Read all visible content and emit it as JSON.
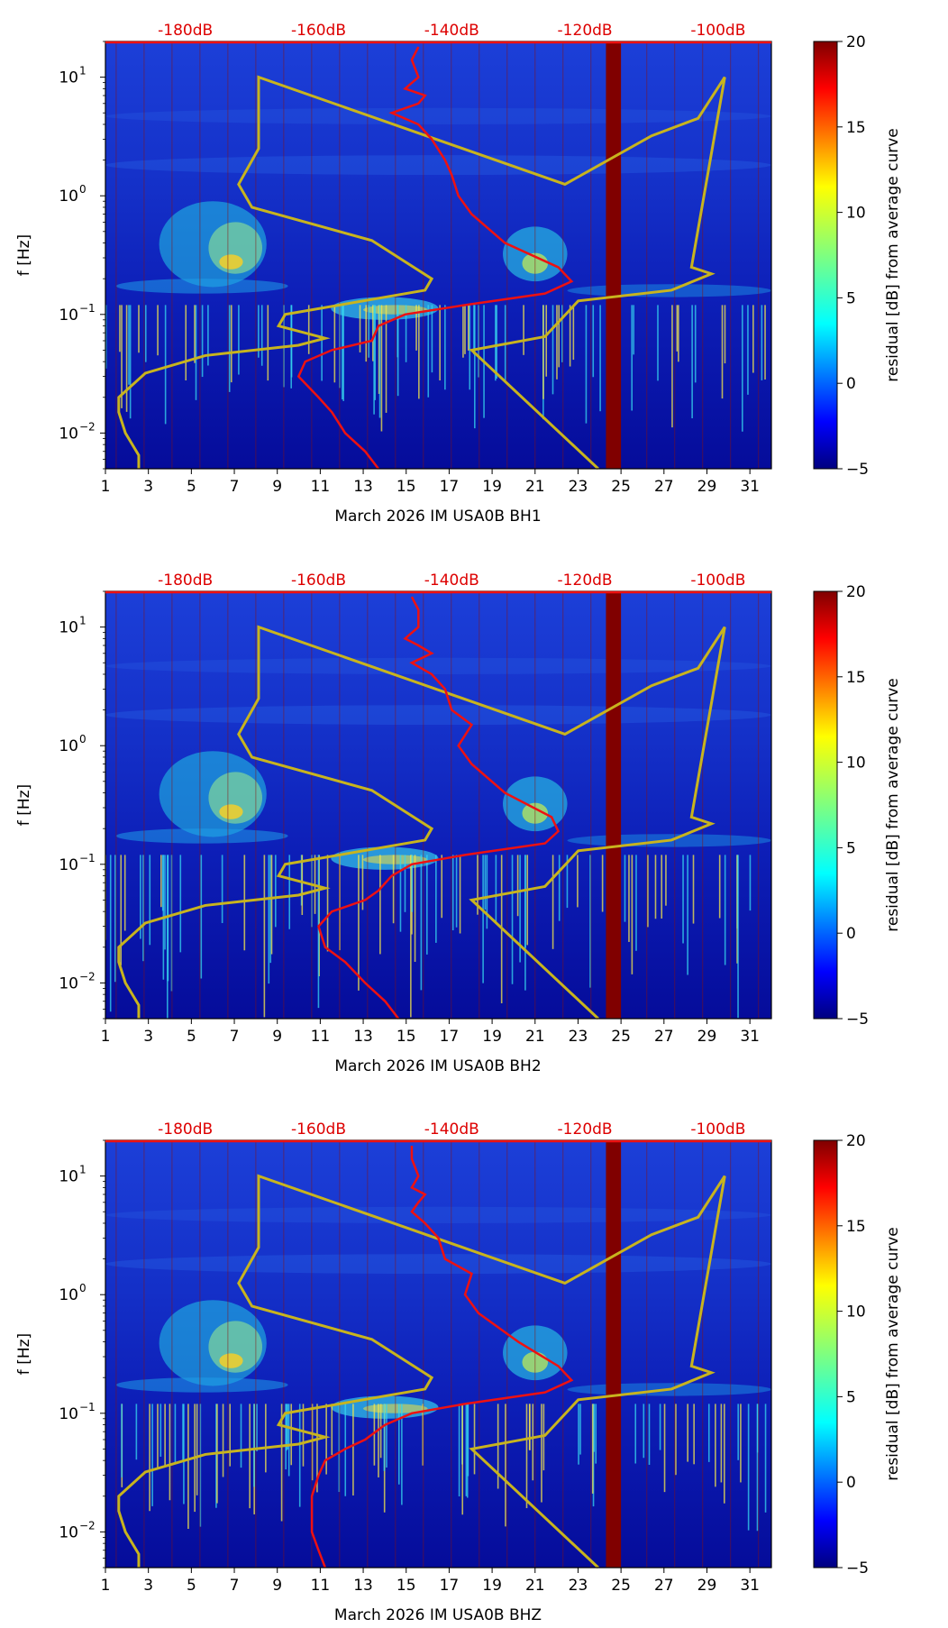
{
  "chart_data": {
    "type": "heatmap",
    "panels": [
      {
        "channel": "BH1",
        "xlabel": "March 2026 IM USA0B  BH1",
        "power_curve": [
          [
            -151,
            0.005
          ],
          [
            -153,
            0.007
          ],
          [
            -156,
            0.01
          ],
          [
            -158,
            0.015
          ],
          [
            -160,
            0.02
          ],
          [
            -163,
            0.03
          ],
          [
            -162,
            0.04
          ],
          [
            -158,
            0.05
          ],
          [
            -152,
            0.06
          ],
          [
            -151,
            0.08
          ],
          [
            -147,
            0.1
          ],
          [
            -138,
            0.12
          ],
          [
            -126,
            0.15
          ],
          [
            -122,
            0.19
          ],
          [
            -124,
            0.25
          ],
          [
            -132,
            0.4
          ],
          [
            -137,
            0.7
          ],
          [
            -139,
            1.0
          ],
          [
            -140,
            1.5
          ],
          [
            -141,
            2.0
          ],
          [
            -143,
            3.0
          ],
          [
            -145,
            4.0
          ],
          [
            -149,
            5.0
          ],
          [
            -145,
            6.0
          ],
          [
            -144,
            7.0
          ],
          [
            -147,
            8.0
          ],
          [
            -145,
            10.0
          ],
          [
            -146,
            14.0
          ],
          [
            -145,
            18.0
          ]
        ]
      },
      {
        "channel": "BH2",
        "xlabel": "March 2026 IM USA0B  BH2",
        "power_curve": [
          [
            -148,
            0.005
          ],
          [
            -150,
            0.007
          ],
          [
            -153,
            0.01
          ],
          [
            -156,
            0.015
          ],
          [
            -159,
            0.02
          ],
          [
            -160,
            0.03
          ],
          [
            -158,
            0.04
          ],
          [
            -153,
            0.05
          ],
          [
            -151,
            0.06
          ],
          [
            -149,
            0.08
          ],
          [
            -146,
            0.1
          ],
          [
            -138,
            0.12
          ],
          [
            -126,
            0.15
          ],
          [
            -124,
            0.19
          ],
          [
            -125,
            0.25
          ],
          [
            -132,
            0.4
          ],
          [
            -137,
            0.7
          ],
          [
            -139,
            1.0
          ],
          [
            -137,
            1.5
          ],
          [
            -140,
            2.0
          ],
          [
            -141,
            3.0
          ],
          [
            -143,
            4.0
          ],
          [
            -146,
            5.0
          ],
          [
            -143,
            6.0
          ],
          [
            -145,
            7.0
          ],
          [
            -147,
            8.0
          ],
          [
            -145,
            10.0
          ],
          [
            -145,
            14.0
          ],
          [
            -146,
            18.0
          ]
        ]
      },
      {
        "channel": "BHZ",
        "xlabel": "March 2026 IM USA0B  BHZ",
        "power_curve": [
          [
            -159,
            0.005
          ],
          [
            -160,
            0.007
          ],
          [
            -161,
            0.01
          ],
          [
            -161,
            0.015
          ],
          [
            -161,
            0.02
          ],
          [
            -160,
            0.03
          ],
          [
            -159,
            0.04
          ],
          [
            -156,
            0.05
          ],
          [
            -153,
            0.06
          ],
          [
            -150,
            0.08
          ],
          [
            -146,
            0.1
          ],
          [
            -138,
            0.12
          ],
          [
            -126,
            0.15
          ],
          [
            -122,
            0.19
          ],
          [
            -124,
            0.25
          ],
          [
            -130,
            0.4
          ],
          [
            -136,
            0.7
          ],
          [
            -138,
            1.0
          ],
          [
            -137,
            1.5
          ],
          [
            -141,
            2.0
          ],
          [
            -142,
            3.0
          ],
          [
            -144,
            4.0
          ],
          [
            -146,
            5.0
          ],
          [
            -145,
            6.0
          ],
          [
            -144,
            7.0
          ],
          [
            -146,
            8.0
          ],
          [
            -145,
            10.0
          ],
          [
            -146,
            14.0
          ],
          [
            -146,
            18.0
          ]
        ]
      }
    ],
    "x_ticks": [
      "1",
      "3",
      "5",
      "7",
      "9",
      "11",
      "13",
      "15",
      "17",
      "19",
      "21",
      "23",
      "25",
      "27",
      "29",
      "31"
    ],
    "x_range": [
      1,
      32
    ],
    "ylabel": "f [Hz]",
    "y_scale": "log",
    "y_range": [
      0.005,
      20
    ],
    "y_tick_values": [
      0.01,
      0.1,
      1,
      10
    ],
    "y_tick_labels": [
      "10",
      "10",
      "10",
      "10"
    ],
    "y_tick_exponents": [
      "−2",
      "−1",
      "0",
      "1"
    ],
    "top_axis_labels": [
      "-180dB",
      "-160dB",
      "-140dB",
      "-120dB",
      "-100dB"
    ],
    "top_axis_values": [
      -180,
      -160,
      -140,
      -120,
      -100
    ],
    "top_axis_range": [
      -192,
      -92
    ],
    "colorbar": {
      "label": "residual [dB] from average curve",
      "range": [
        -5,
        20
      ],
      "ticks": [
        "−5",
        "0",
        "5",
        "10",
        "15",
        "20"
      ]
    },
    "data_gap_days": [
      24.3,
      25.0
    ],
    "model_curve": [
      [
        -187,
        0.005
      ],
      [
        -187,
        0.0065
      ],
      [
        -189,
        0.01
      ],
      [
        -190,
        0.015
      ],
      [
        -190,
        0.02
      ],
      [
        -186,
        0.032
      ],
      [
        -177,
        0.045
      ],
      [
        -163,
        0.055
      ],
      [
        -159,
        0.063
      ],
      [
        -166,
        0.08
      ],
      [
        -165,
        0.1
      ],
      [
        -144,
        0.16
      ],
      [
        -143,
        0.2
      ],
      [
        -152,
        0.42
      ],
      [
        -170,
        0.8
      ],
      [
        -172,
        1.25
      ],
      [
        -169,
        2.5
      ],
      [
        -169,
        10
      ],
      [
        -123,
        1.25
      ],
      [
        -110,
        3.2
      ],
      [
        -103,
        4.5
      ],
      [
        -99,
        10
      ],
      [
        -104,
        0.25
      ],
      [
        -101,
        0.22
      ],
      [
        -107,
        0.16
      ],
      [
        -121,
        0.13
      ],
      [
        -126,
        0.065
      ],
      [
        -137,
        0.05
      ],
      [
        -118,
        0.005
      ]
    ],
    "colors": {
      "power_curve": "#ee1111",
      "model_curve": "#c8b41e",
      "top_labels": "#dd0000",
      "gap": "#800000"
    }
  }
}
